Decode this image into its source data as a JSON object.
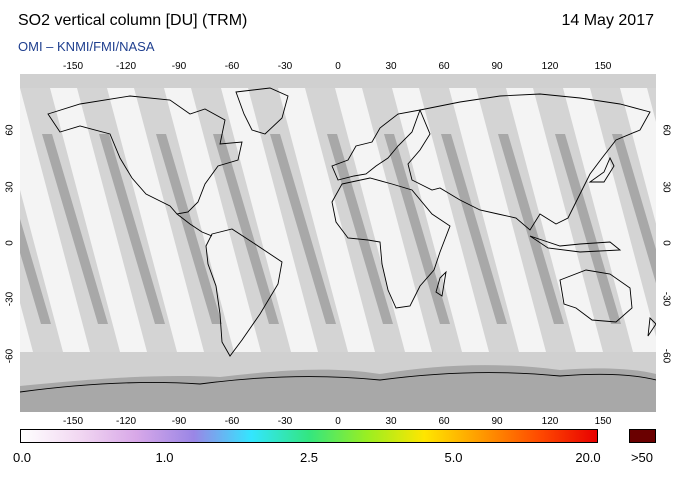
{
  "title": "SO2 vertical column [DU] (TRM)",
  "date": "14 May 2017",
  "credit": "OMI  –  KNMI/FMI/NASA",
  "lon_ticks": [
    "-150",
    "-120",
    "-90",
    "-60",
    "-30",
    "0",
    "30",
    "60",
    "90",
    "120",
    "150"
  ],
  "lat_ticks": [
    "60",
    "30",
    "0",
    "-30",
    "-60"
  ],
  "map": {
    "lon_range": [
      -180,
      180
    ],
    "lat_range": [
      -90,
      90
    ],
    "colors": {
      "background": "#f4f4f4",
      "swath_light": "#d4d4d4",
      "swath_dark": "#a8a8a8",
      "polar": "#d0d0d0",
      "coastline": "#000000"
    }
  },
  "colorbar": {
    "labels": [
      "0.0",
      "1.0",
      "2.5",
      "5.0",
      "20.0"
    ],
    "label_positions": [
      0,
      0.25,
      0.5,
      0.75,
      1
    ],
    "over_label": ">50",
    "over_color": "#6a0000",
    "stops": [
      "#ffffff",
      "#f2d8f2",
      "#d8a8e8",
      "#9a86e6",
      "#33e6ff",
      "#33e680",
      "#99ee22",
      "#ffe600",
      "#ff9900",
      "#ff4a00",
      "#e80000"
    ]
  }
}
